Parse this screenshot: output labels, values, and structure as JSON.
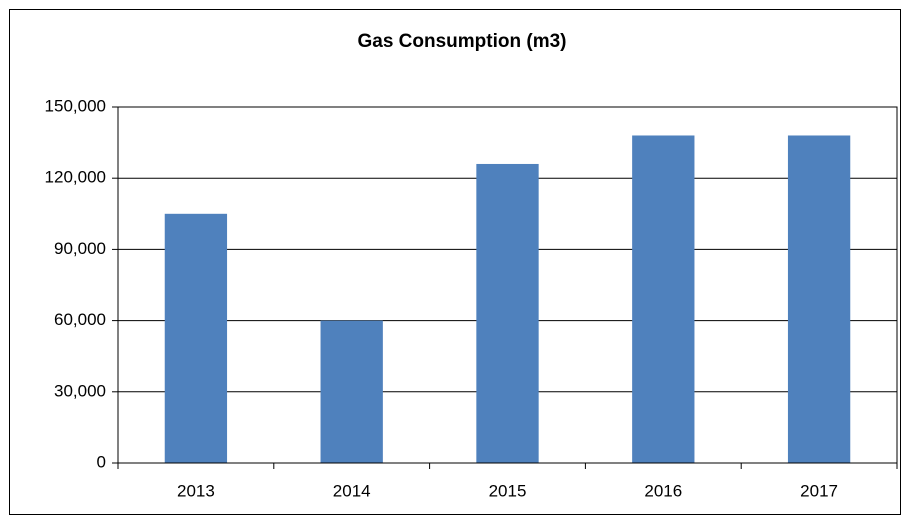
{
  "chart_data": {
    "type": "bar",
    "title": "Gas Consumption (m3)",
    "categories": [
      "2013",
      "2014",
      "2015",
      "2016",
      "2017"
    ],
    "values": [
      105000,
      60000,
      126000,
      138000,
      138000
    ],
    "color": "#4f81bd",
    "ylim": [
      0,
      150000
    ],
    "yticks": [
      0,
      {
        "value": 30000,
        "label": "30,000"
      },
      {
        "value": 60000,
        "label": "60,000"
      },
      {
        "value": 90000,
        "label": "90,000"
      },
      {
        "value": 120000,
        "label": "120,000"
      },
      {
        "value": 150000,
        "label": "150,000"
      }
    ],
    "grid": true
  }
}
